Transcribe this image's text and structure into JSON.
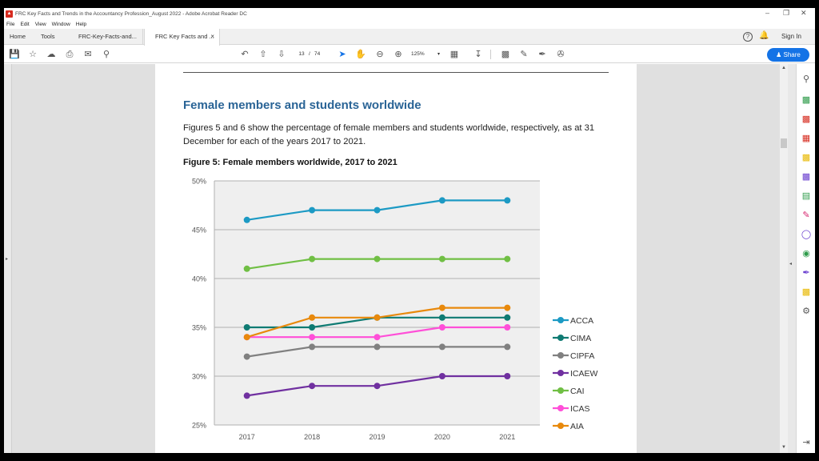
{
  "window": {
    "title": "FRC Key Facts and Trends in the Accountancy Profession_August 2022 - Adobe Acrobat Reader DC",
    "minimize": "–",
    "restore": "❐",
    "close": "✕"
  },
  "menu": [
    "File",
    "Edit",
    "View",
    "Window",
    "Help"
  ],
  "tabs": {
    "home": "Home",
    "tools": "Tools",
    "doc1": "FRC-Key-Facts-and...",
    "doc2": "FRC Key Facts and ...",
    "close": "×"
  },
  "header_right": {
    "help": "?",
    "sign_in": "Sign In"
  },
  "toolbar": {
    "page_current": "13",
    "page_sep": "/",
    "page_total": "74",
    "zoom": "125%",
    "share": "Share"
  },
  "icons": {
    "save": "save-icon",
    "star": "star-icon",
    "upload": "upload-icon",
    "print": "print-icon",
    "email": "email-icon",
    "search": "search-icon",
    "rotate": "rotate-icon",
    "prev": "prev-page-icon",
    "next": "next-page-icon",
    "select": "select-arrow-icon",
    "hand": "hand-icon",
    "zoom_out": "zoom-out-icon",
    "zoom_in": "zoom-in-icon",
    "fit": "fit-page-icon",
    "scroll": "scroll-mode-icon",
    "comment": "comment-icon",
    "highlight": "highlight-icon",
    "sign": "sign-icon",
    "stamp": "stamp-icon"
  },
  "document": {
    "heading": "Female members and students worldwide",
    "body": "Figures 5 and 6 show the percentage of female members and students worldwide, respectively, as at 31 December for each of the years 2017 to 2021.",
    "figure_title": "Figure 5: Female members worldwide, 2017 to 2021"
  },
  "chart_data": {
    "type": "line",
    "title": "",
    "xlabel": "",
    "ylabel": "",
    "x": [
      "2017",
      "2018",
      "2019",
      "2020",
      "2021"
    ],
    "y_ticks": [
      "50%",
      "45%",
      "40%",
      "35%",
      "30%",
      "25%"
    ],
    "ylim": [
      25,
      50
    ],
    "grid": true,
    "legend_position": "right",
    "series": [
      {
        "name": "ACCA",
        "color": "#1c9ac4",
        "values": [
          46,
          47,
          47,
          48,
          48
        ]
      },
      {
        "name": "CIMA",
        "color": "#0f7b73",
        "values": [
          35,
          35,
          36,
          36,
          36
        ]
      },
      {
        "name": "CIPFA",
        "color": "#808080",
        "values": [
          32,
          33,
          33,
          33,
          33
        ]
      },
      {
        "name": "ICAEW",
        "color": "#7030a0",
        "values": [
          28,
          29,
          29,
          30,
          30
        ]
      },
      {
        "name": "CAI",
        "color": "#70bf44",
        "values": [
          41,
          42,
          42,
          42,
          42
        ]
      },
      {
        "name": "ICAS",
        "color": "#ff4fd8",
        "values": [
          34,
          34,
          34,
          35,
          35
        ]
      },
      {
        "name": "AIA",
        "color": "#e8890c",
        "values": [
          34,
          36,
          36,
          37,
          37
        ]
      }
    ]
  }
}
